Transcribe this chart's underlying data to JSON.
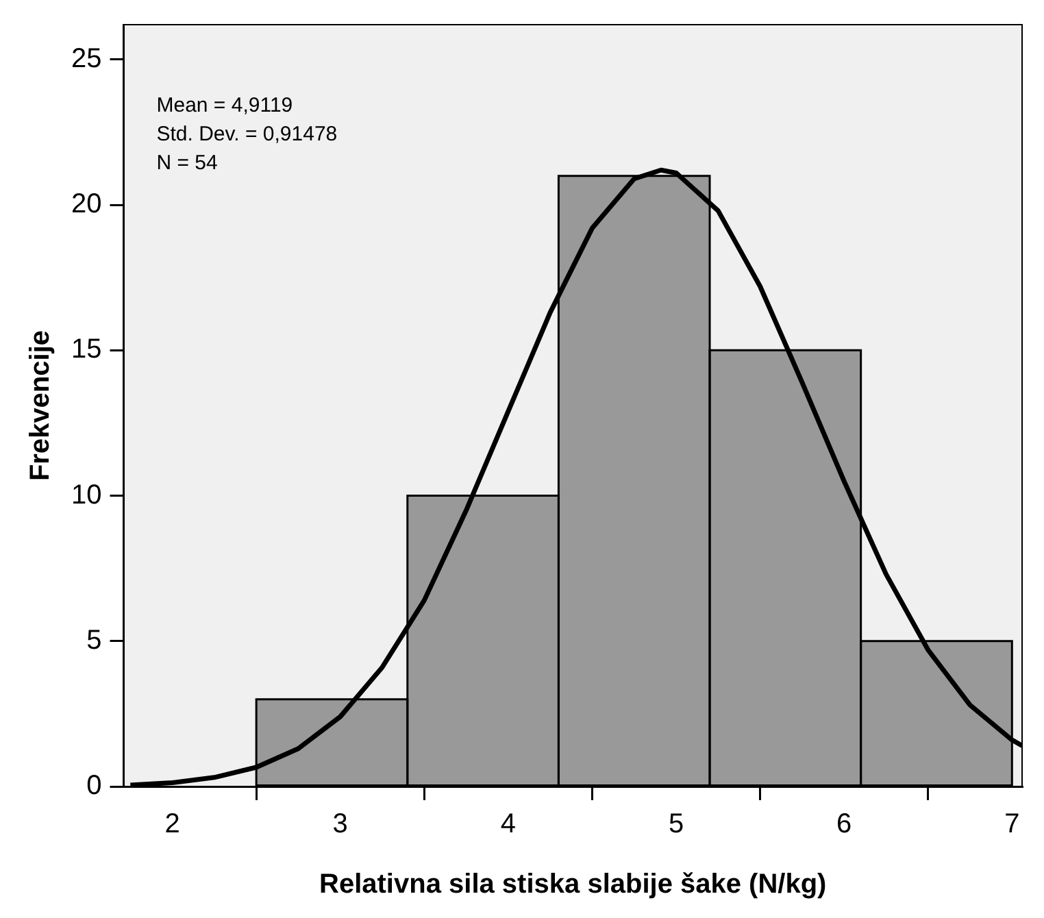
{
  "chart_data": {
    "type": "histogram",
    "xlabel": "Relativna sila stiska slabije šake (N/kg)",
    "ylabel": "Frekvencije",
    "annotations": [
      "Mean = 4,9119",
      "Std. Dev. = 0,91478",
      "N = 54"
    ],
    "xlim": [
      1.71,
      7.06
    ],
    "xticks": [
      2,
      3,
      4,
      5,
      6,
      7
    ],
    "ylim": [
      0,
      26.2
    ],
    "yticks": [
      0,
      5,
      10,
      15,
      20,
      25
    ],
    "grid": false,
    "legend": false,
    "series": [
      {
        "type": "histogram",
        "color": "#999999",
        "bins": [
          2.5,
          3.4,
          4.3,
          5.2,
          6.1,
          7.0
        ],
        "values": [
          3,
          10,
          21,
          15,
          5
        ]
      },
      {
        "type": "line",
        "color": "#000000",
        "x": [
          1.75,
          2.0,
          2.25,
          2.5,
          2.75,
          3.0,
          3.25,
          3.5,
          3.75,
          4.0,
          4.25,
          4.5,
          4.75,
          4.91,
          5.0,
          5.25,
          5.5,
          5.75,
          6.0,
          6.25,
          6.5,
          6.75,
          7.0,
          7.06
        ],
        "values": [
          0.05,
          0.13,
          0.31,
          0.66,
          1.3,
          2.4,
          4.1,
          6.4,
          9.5,
          12.9,
          16.3,
          19.2,
          20.9,
          21.2,
          21.1,
          19.8,
          17.2,
          13.9,
          10.5,
          7.3,
          4.7,
          2.8,
          1.6,
          1.4
        ]
      }
    ]
  }
}
